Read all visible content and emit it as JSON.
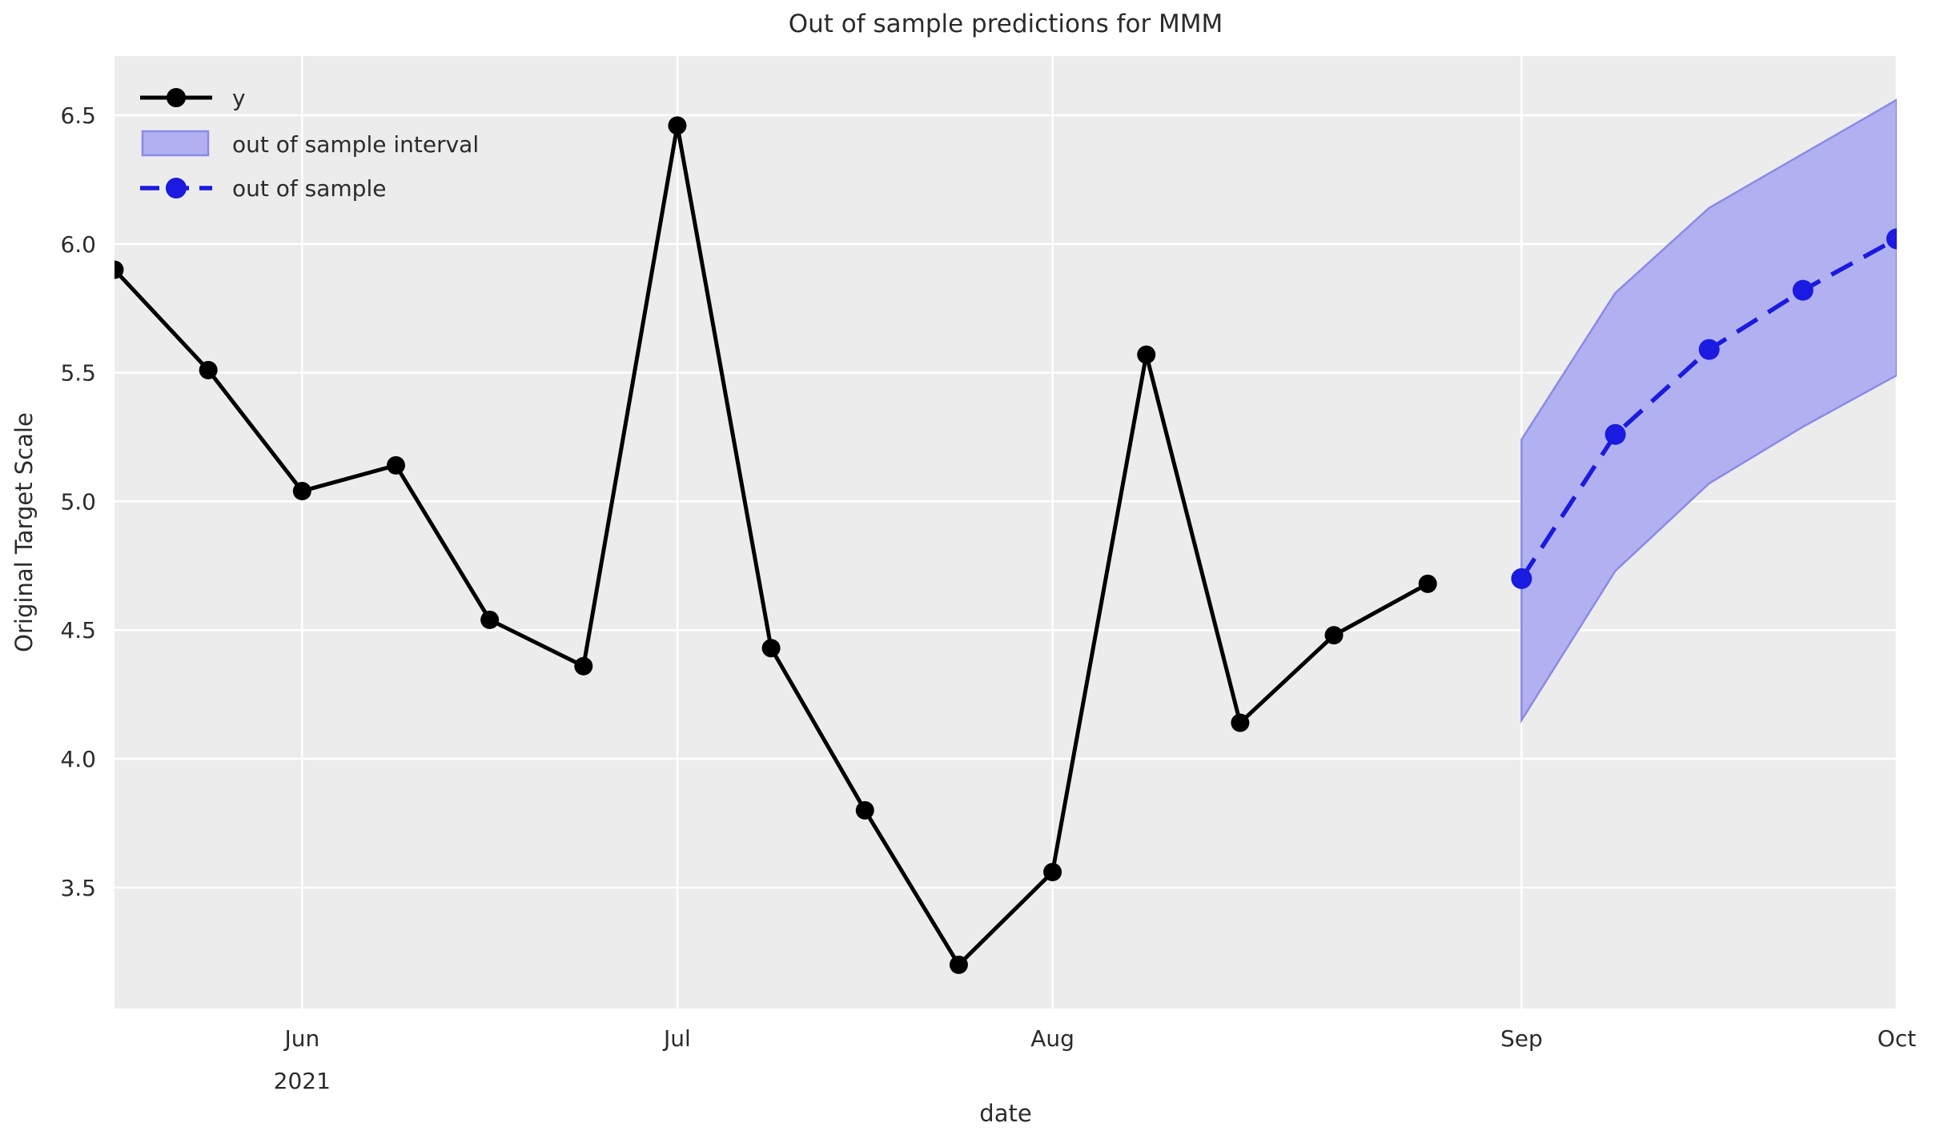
{
  "chart_data": {
    "type": "line",
    "title": "Out of sample predictions for MMM",
    "xlabel": "date",
    "ylabel": "Original Target Scale",
    "grid": true,
    "legend": {
      "position": "upper-left",
      "items": [
        "y",
        "out of sample interval",
        "out of sample"
      ]
    },
    "x_ticks": [
      {
        "label": "Jun",
        "sublabel": "2021",
        "day": 14
      },
      {
        "label": "Jul",
        "sublabel": "",
        "day": 42
      },
      {
        "label": "Aug",
        "sublabel": "",
        "day": 70
      },
      {
        "label": "Sep",
        "sublabel": "",
        "day": 105
      },
      {
        "label": "Oct",
        "sublabel": "",
        "day": 133
      }
    ],
    "y_ticks": [
      6.5,
      6.0,
      5.5,
      5.0,
      4.5,
      4.0,
      3.5
    ],
    "xlim_days": [
      0,
      133
    ],
    "ylim": [
      3.03,
      6.73
    ],
    "series": [
      {
        "name": "y",
        "style": "solid-marker",
        "color": "#000000",
        "x_days": [
          0,
          7,
          14,
          21,
          28,
          35,
          42,
          49,
          56,
          63,
          70,
          77,
          84,
          91,
          98
        ],
        "values": [
          5.9,
          5.51,
          5.04,
          5.14,
          4.54,
          4.36,
          6.46,
          4.43,
          3.8,
          3.2,
          3.56,
          5.57,
          4.14,
          4.48,
          4.68
        ]
      },
      {
        "name": "out of sample",
        "style": "dashed-marker",
        "color": "#1a1ae0",
        "x_days": [
          105,
          112,
          119,
          126,
          133
        ],
        "values": [
          4.7,
          5.26,
          5.59,
          5.82,
          6.02
        ]
      }
    ],
    "interval": {
      "name": "out of sample interval",
      "fill": "#b1b1f1",
      "edge": "#8a8ae6",
      "x_days": [
        105,
        112,
        119,
        126,
        133
      ],
      "lower": [
        4.15,
        4.73,
        5.07,
        5.29,
        5.49
      ],
      "upper": [
        5.24,
        5.81,
        6.14,
        6.35,
        6.56
      ]
    },
    "colors": {
      "axes_background": "#ececec",
      "gridline": "#ffffff",
      "text": "#2b2b2b"
    }
  }
}
